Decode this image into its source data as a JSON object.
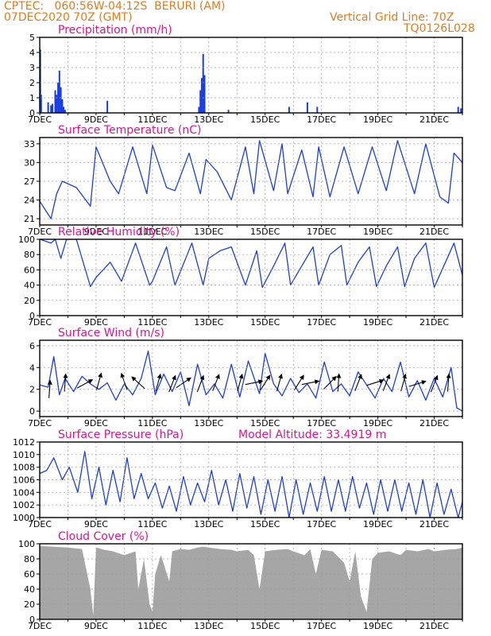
{
  "header": {
    "line1": "CPTEC:   060:56W-04:12S  BERURI (AM)",
    "line2": "07DEC2020 70Z (GMT)",
    "right1": "Vertical Grid Line: 70Z",
    "right2": "TQ0126L028"
  },
  "colors": {
    "header": "#e07b1f",
    "title": "#e0118f",
    "series": "#1a3de0",
    "cloud": "#a6a6a6",
    "wind_arrow": "#000000"
  },
  "x_axis": {
    "ticks": [
      "7DEC",
      "9DEC",
      "11DEC",
      "13DEC",
      "15DEC",
      "17DEC",
      "19DEC",
      "21DEC"
    ],
    "range_days": [
      7,
      22
    ]
  },
  "chart_data": [
    {
      "type": "bar",
      "id": "precip",
      "title": "Precipitation (mm/h)",
      "ylim": [
        0,
        5
      ],
      "yticks": [
        0,
        1,
        2,
        3,
        4,
        5
      ],
      "x": [
        7.02,
        7.05,
        7.3,
        7.4,
        7.45,
        7.55,
        7.6,
        7.65,
        7.7,
        7.75,
        7.8,
        7.85,
        7.9,
        9.4,
        12.65,
        12.7,
        12.75,
        12.8,
        12.85,
        13.7,
        15.85,
        16.5,
        16.85,
        21.85,
        21.95
      ],
      "values": [
        4.2,
        1.2,
        0.7,
        0.5,
        0.6,
        1.5,
        1.2,
        2.0,
        2.8,
        1.7,
        0.9,
        0.4,
        0.2,
        0.8,
        0.4,
        1.5,
        2.3,
        3.9,
        2.5,
        0.2,
        0.4,
        0.7,
        0.4,
        0.4,
        0.3
      ]
    },
    {
      "type": "line",
      "id": "temp",
      "title": "Surface Temperature (nC)",
      "ylim": [
        20,
        34
      ],
      "yticks": [
        21,
        24,
        27,
        30,
        33
      ],
      "x": [
        7.0,
        7.4,
        7.6,
        7.8,
        8.3,
        8.8,
        9.0,
        9.5,
        9.8,
        10.3,
        10.8,
        11.0,
        11.5,
        11.8,
        12.3,
        12.7,
        12.9,
        13.3,
        13.8,
        14.3,
        14.6,
        14.8,
        15.3,
        15.6,
        15.8,
        16.3,
        16.7,
        16.9,
        17.3,
        17.8,
        18.3,
        18.8,
        19.3,
        19.7,
        20.3,
        20.7,
        21.2,
        21.5,
        21.7,
        22.0
      ],
      "values": [
        23.8,
        21.0,
        25.0,
        27.0,
        26.0,
        23.0,
        32.5,
        27.0,
        25.0,
        32.5,
        25.0,
        32.8,
        26.0,
        25.5,
        31.5,
        25.0,
        30.5,
        28.5,
        24.0,
        32.5,
        25.0,
        33.5,
        25.5,
        33.0,
        25.0,
        32.0,
        24.5,
        32.5,
        24.5,
        32.5,
        25.0,
        32.5,
        25.5,
        33.5,
        25.0,
        33.0,
        24.5,
        23.5,
        31.5,
        30.0
      ]
    },
    {
      "type": "line",
      "id": "rh",
      "title": "Relative Humidity (%)",
      "ylim": [
        0,
        100
      ],
      "yticks": [
        0,
        20,
        40,
        60,
        80,
        100
      ],
      "x": [
        7.0,
        7.4,
        7.55,
        7.75,
        7.95,
        8.3,
        8.8,
        9.0,
        9.5,
        9.9,
        10.4,
        10.9,
        11.0,
        11.5,
        11.8,
        12.4,
        12.8,
        13.0,
        13.4,
        13.8,
        14.3,
        14.7,
        14.9,
        15.3,
        15.7,
        15.9,
        16.3,
        16.7,
        16.9,
        17.3,
        17.7,
        17.9,
        18.3,
        18.7,
        18.95,
        19.3,
        19.7,
        19.95,
        20.3,
        20.7,
        21.0,
        21.4,
        21.7,
        22.0
      ],
      "values": [
        100.0,
        95.0,
        100.0,
        75.0,
        100.0,
        100.0,
        38.0,
        50.0,
        70.0,
        45.0,
        95.0,
        40.0,
        45.0,
        90.0,
        40.0,
        95.0,
        40.0,
        75.0,
        85.0,
        90.0,
        40.0,
        85.0,
        37.0,
        65.0,
        95.0,
        40.0,
        65.0,
        90.0,
        40.0,
        80.0,
        92.0,
        40.0,
        70.0,
        90.0,
        38.0,
        65.0,
        90.0,
        38.0,
        75.0,
        95.0,
        37.0,
        70.0,
        95.0,
        53.0
      ]
    },
    {
      "type": "line",
      "id": "wind",
      "title": "Surface Wind (m/s)",
      "ylim": [
        -0.5,
        6.5
      ],
      "yticks": [
        0,
        2,
        4,
        6
      ],
      "x": [
        7.0,
        7.3,
        7.5,
        7.7,
        7.9,
        8.2,
        8.5,
        8.8,
        9.1,
        9.4,
        9.7,
        10.0,
        10.3,
        10.6,
        10.85,
        11.1,
        11.4,
        11.7,
        12.0,
        12.3,
        12.6,
        12.9,
        13.2,
        13.5,
        13.8,
        14.1,
        14.4,
        14.8,
        15.0,
        15.3,
        15.6,
        15.9,
        16.2,
        16.5,
        16.8,
        17.1,
        17.4,
        17.7,
        18.0,
        18.3,
        18.6,
        18.9,
        19.2,
        19.5,
        19.8,
        20.1,
        20.4,
        20.7,
        21.0,
        21.3,
        21.6,
        21.8,
        22.0
      ],
      "values": [
        2.4,
        2.2,
        5.0,
        1.5,
        3.0,
        1.8,
        3.2,
        2.5,
        2.0,
        2.6,
        1.0,
        2.5,
        1.5,
        3.0,
        5.5,
        1.5,
        3.4,
        1.8,
        3.6,
        0.5,
        4.3,
        1.5,
        2.5,
        1.2,
        4.3,
        1.3,
        4.6,
        1.6,
        5.3,
        2.5,
        1.4,
        3.0,
        1.7,
        2.5,
        1.2,
        4.5,
        1.8,
        2.5,
        1.4,
        3.6,
        2.4,
        1.2,
        3.0,
        1.8,
        4.5,
        1.3,
        2.8,
        1.0,
        3.0,
        1.3,
        4.0,
        0.3,
        0.0
      ],
      "arrows": [
        [
          7.35,
          2.0,
          1.5
        ],
        [
          7.9,
          2.6,
          1.5
        ],
        [
          8.6,
          2.5,
          0.5
        ],
        [
          9.1,
          2.7,
          1.3
        ],
        [
          10.0,
          2.7,
          1.9
        ],
        [
          10.5,
          2.6,
          2.4
        ],
        [
          11.2,
          2.6,
          1.3
        ],
        [
          11.7,
          2.5,
          1.2
        ],
        [
          12.1,
          2.6,
          0.6
        ],
        [
          12.7,
          2.5,
          1.2
        ],
        [
          13.25,
          2.6,
          1.2
        ],
        [
          14.1,
          2.6,
          1.3
        ],
        [
          14.6,
          2.6,
          0.2
        ],
        [
          15.0,
          2.6,
          1.0
        ],
        [
          15.5,
          2.6,
          1.3
        ],
        [
          16.2,
          2.6,
          1.0
        ],
        [
          16.6,
          2.6,
          0.2
        ],
        [
          17.3,
          2.6,
          0.8
        ],
        [
          17.6,
          2.6,
          1.5
        ],
        [
          18.3,
          2.6,
          1.2
        ],
        [
          18.9,
          2.6,
          0.3
        ],
        [
          19.3,
          2.6,
          1.2
        ],
        [
          19.9,
          2.6,
          1.3
        ],
        [
          20.4,
          2.5,
          0.3
        ],
        [
          21.0,
          2.5,
          1.2
        ],
        [
          21.5,
          2.6,
          1.5
        ]
      ]
    },
    {
      "type": "line",
      "id": "press",
      "title": "Surface Pressure (hPa)",
      "annotation": "Model Altitude: 33.4919 m",
      "ylim": [
        1000,
        1012
      ],
      "yticks": [
        1000,
        1002,
        1004,
        1006,
        1008,
        1010,
        1012
      ],
      "x": [
        7.0,
        7.25,
        7.5,
        7.8,
        8.05,
        8.35,
        8.6,
        8.85,
        9.1,
        9.35,
        9.6,
        9.85,
        10.1,
        10.35,
        10.6,
        10.85,
        11.1,
        11.35,
        11.6,
        11.85,
        12.1,
        12.35,
        12.6,
        12.85,
        13.1,
        13.35,
        13.6,
        13.85,
        14.1,
        14.35,
        14.6,
        14.85,
        15.1,
        15.35,
        15.6,
        15.85,
        16.1,
        16.35,
        16.6,
        16.85,
        17.1,
        17.35,
        17.6,
        17.85,
        18.1,
        18.35,
        18.6,
        18.85,
        19.1,
        19.35,
        19.6,
        19.85,
        20.1,
        20.35,
        20.6,
        20.85,
        21.1,
        21.35,
        21.6,
        21.85,
        22.0
      ],
      "values": [
        1007.0,
        1007.5,
        1009.5,
        1006.0,
        1008.0,
        1004.0,
        1010.5,
        1003.0,
        1008.0,
        1002.0,
        1007.5,
        1002.5,
        1009.5,
        1003.0,
        1007.0,
        1003.0,
        1005.5,
        1001.5,
        1005.0,
        1001.0,
        1006.5,
        1002.0,
        1005.5,
        1002.5,
        1007.5,
        1002.0,
        1006.0,
        1001.0,
        1007.0,
        1001.5,
        1006.5,
        1000.5,
        1006.0,
        1001.0,
        1006.5,
        1000.0,
        1006.0,
        1000.5,
        1005.5,
        1001.0,
        1006.5,
        1001.0,
        1006.0,
        1001.0,
        1006.5,
        1001.5,
        1005.5,
        1000.5,
        1006.0,
        1001.0,
        1006.0,
        1001.0,
        1005.5,
        1000.5,
        1006.0,
        1000.0,
        1005.5,
        1000.5,
        1004.5,
        1000.0,
        1002.5
      ]
    },
    {
      "type": "area",
      "id": "cloud",
      "title": "Cloud Cover (%)",
      "ylim": [
        0,
        100
      ],
      "yticks": [
        0,
        20,
        40,
        60,
        80,
        100
      ],
      "x": [
        7.0,
        7.5,
        8.0,
        8.5,
        8.8,
        8.9,
        9.0,
        9.3,
        9.6,
        10.0,
        10.4,
        10.5,
        10.7,
        10.9,
        11.0,
        11.1,
        11.3,
        11.6,
        11.7,
        12.0,
        12.3,
        12.6,
        12.8,
        13.0,
        13.4,
        13.8,
        14.0,
        14.4,
        14.6,
        14.8,
        15.0,
        15.4,
        15.8,
        16.0,
        16.4,
        16.6,
        16.8,
        17.0,
        17.4,
        17.8,
        18.0,
        18.2,
        18.4,
        18.6,
        18.8,
        19.0,
        19.4,
        19.8,
        20.0,
        20.4,
        20.8,
        21.0,
        21.4,
        21.8,
        22.0
      ],
      "values": [
        97.0,
        96.0,
        95.0,
        93.0,
        40.0,
        5.0,
        95.0,
        92.0,
        90.0,
        85.0,
        90.0,
        40.0,
        80.0,
        20.0,
        10.0,
        60.0,
        85.0,
        50.0,
        90.0,
        93.0,
        92.0,
        95.0,
        96.0,
        95.0,
        93.0,
        92.0,
        90.0,
        92.0,
        85.0,
        40.0,
        90.0,
        92.0,
        93.0,
        90.0,
        85.0,
        93.0,
        60.0,
        92.0,
        90.0,
        75.0,
        50.0,
        90.0,
        30.0,
        10.0,
        80.0,
        88.0,
        90.0,
        85.0,
        92.0,
        90.0,
        93.0,
        90.0,
        92.0,
        93.0,
        95.0
      ]
    }
  ]
}
